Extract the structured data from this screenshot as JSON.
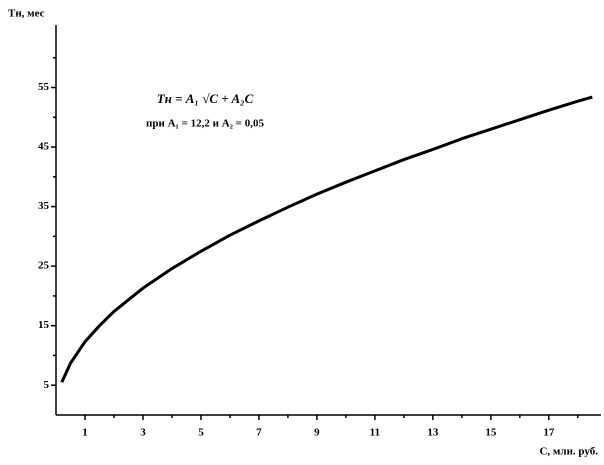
{
  "chart_data": {
    "type": "line",
    "y_label": "Tн, мес",
    "x_label": "C, млн. руб.",
    "annotations": [
      "Tн = A₁ √C + A₂C",
      "при A₁ = 12,2 и A₂ = 0,05"
    ],
    "x": [
      0.2,
      0.5,
      1,
      1.5,
      2,
      3,
      4,
      5,
      6,
      7,
      8,
      9,
      10,
      11,
      12,
      13,
      14,
      15,
      16,
      17,
      18,
      18.5
    ],
    "series": [
      {
        "name": "Tн",
        "color": "#000000",
        "values": [
          5.5,
          8.7,
          12.3,
          15.0,
          17.4,
          21.3,
          24.6,
          27.5,
          30.2,
          32.6,
          34.9,
          37.1,
          39.1,
          41.0,
          42.9,
          44.6,
          46.4,
          48.0,
          49.6,
          51.2,
          52.7,
          53.4
        ]
      }
    ],
    "xlim": [
      0,
      18.8
    ],
    "ylim": [
      0,
      65.5
    ],
    "xticks": [
      1,
      3,
      5,
      7,
      9,
      11,
      13,
      15,
      17
    ],
    "x_minor_ticks": [
      2,
      4,
      6,
      8,
      10,
      12,
      14,
      16,
      18
    ],
    "yticks": [
      5,
      15,
      25,
      35,
      45,
      55
    ],
    "y_minor_ticks": [
      10,
      20,
      30,
      40,
      50,
      60
    ],
    "grid": false
  }
}
